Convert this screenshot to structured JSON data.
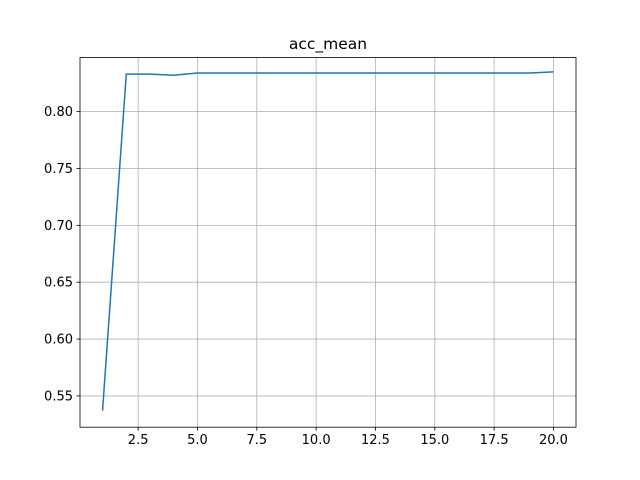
{
  "chart_data": {
    "type": "line",
    "title": "acc_mean",
    "xlabel": "",
    "ylabel": "",
    "xlim": [
      0.05,
      20.95
    ],
    "ylim": [
      0.5225,
      0.8475
    ],
    "grid": true,
    "xticks": [
      2.5,
      5.0,
      7.5,
      10.0,
      12.5,
      15.0,
      17.5,
      20.0
    ],
    "xtick_labels": [
      "2.5",
      "5.0",
      "7.5",
      "10.0",
      "12.5",
      "15.0",
      "17.5",
      "20.0"
    ],
    "yticks": [
      0.55,
      0.6,
      0.65,
      0.7,
      0.75,
      0.8
    ],
    "ytick_labels": [
      "0.55",
      "0.60",
      "0.65",
      "0.70",
      "0.75",
      "0.80"
    ],
    "series": [
      {
        "color": "#1f77b4",
        "x": [
          1,
          2,
          3,
          4,
          5,
          6,
          7,
          8,
          9,
          10,
          11,
          12,
          13,
          14,
          15,
          16,
          17,
          18,
          19,
          20
        ],
        "y": [
          0.537,
          0.833,
          0.833,
          0.832,
          0.834,
          0.834,
          0.834,
          0.834,
          0.834,
          0.834,
          0.834,
          0.834,
          0.834,
          0.834,
          0.834,
          0.834,
          0.834,
          0.834,
          0.834,
          0.835
        ]
      }
    ]
  }
}
